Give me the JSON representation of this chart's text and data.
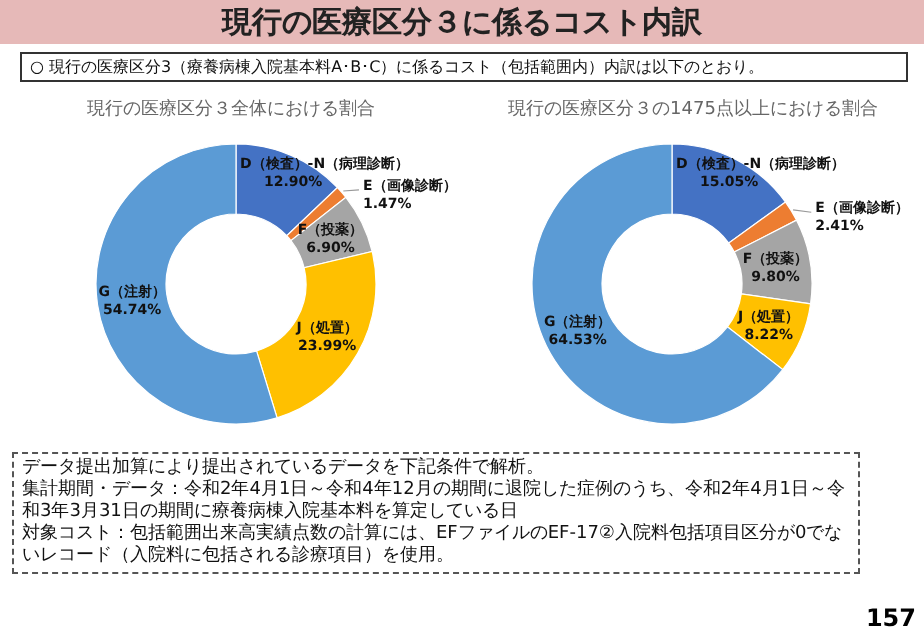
{
  "chart_data": [
    {
      "type": "donut",
      "title": "現行の医療区分３全体における割合",
      "categories": [
        "D（検査）-N（病理診断）",
        "E（画像診断）",
        "F（投薬）",
        "J（処置）",
        "G（注射）"
      ],
      "values": [
        12.9,
        1.47,
        6.9,
        23.99,
        54.74
      ],
      "value_labels": [
        "12.90%",
        "1.47%",
        "6.90%",
        "23.99%",
        "54.74%"
      ],
      "colors": [
        "#4472c4",
        "#ed7d31",
        "#a5a5a5",
        "#ffc000",
        "#5b9bd5"
      ],
      "legend": false,
      "annotations": [
        "現行の医療区分３に係るコスト内訳",
        "○ 現行の医療区分3（療養病棟入院基本料A･B･C）に係るコスト（包括範囲内）内訳は以下のとおり。"
      ]
    },
    {
      "type": "donut",
      "title": "現行の医療区分３の1475点以上における割合",
      "categories": [
        "D（検査）-N（病理診断）",
        "E（画像診断）",
        "F（投薬）",
        "J（処置）",
        "G（注射）"
      ],
      "values": [
        15.05,
        2.41,
        9.8,
        8.22,
        64.53
      ],
      "value_labels": [
        "15.05%",
        "2.41%",
        "9.80%",
        "8.22%",
        "64.53%"
      ],
      "colors": [
        "#4472c4",
        "#ed7d31",
        "#a5a5a5",
        "#ffc000",
        "#5b9bd5"
      ],
      "legend": false,
      "annotations": [
        "データ提出加算により提出されているデータを下記条件で解析。",
        "集計期間・データ：令和2年4月1日～令和4年12月の期間に退院した症例のうち、令和2年4月1日～令和3年3月31日の期間に療養病棟入院基本料を算定している日",
        "対象コスト：包括範囲出来高実績点数の計算には、EFファイルのEF-17②入院料包括項目区分が0でないレコード（入院料に包括される診療項目）を使用。",
        "157"
      ]
    }
  ]
}
